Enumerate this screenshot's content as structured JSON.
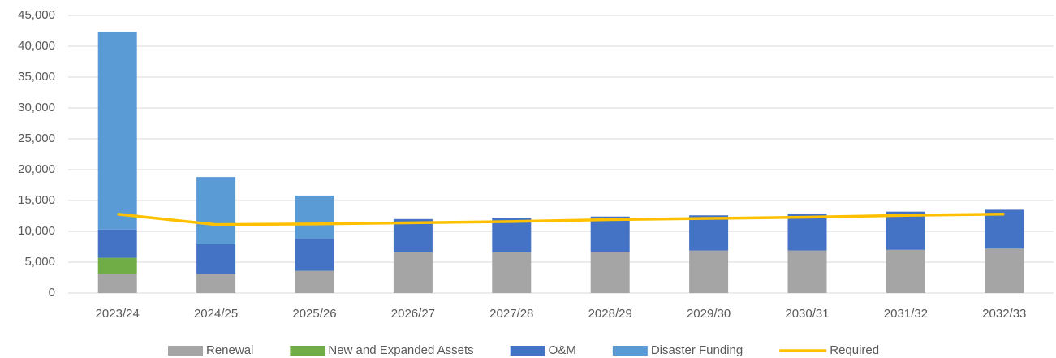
{
  "chart_data": {
    "type": "bar",
    "stacked": true,
    "categories": [
      "2023/24",
      "2024/25",
      "2025/26",
      "2026/27",
      "2027/28",
      "2028/29",
      "2029/30",
      "2030/31",
      "2031/32",
      "2032/33"
    ],
    "series": [
      {
        "name": "Renewal",
        "color": "#a5a5a5",
        "type": "bar",
        "values": [
          3100,
          3100,
          3600,
          6600,
          6600,
          6700,
          6900,
          6900,
          7000,
          7200
        ]
      },
      {
        "name": "New and Expanded Assets",
        "color": "#70ad47",
        "type": "bar",
        "values": [
          2600,
          0,
          0,
          0,
          0,
          0,
          0,
          0,
          0,
          0
        ]
      },
      {
        "name": "O&M",
        "color": "#4472c4",
        "type": "bar",
        "values": [
          4600,
          4800,
          5200,
          5400,
          5600,
          5700,
          5700,
          6000,
          6200,
          6300
        ]
      },
      {
        "name": "Disaster Funding",
        "color": "#5b9bd5",
        "type": "bar",
        "values": [
          32000,
          10900,
          7000,
          0,
          0,
          0,
          0,
          0,
          0,
          0
        ]
      },
      {
        "name": "Required",
        "color": "#ffc000",
        "type": "line",
        "values": [
          12800,
          11100,
          11200,
          11400,
          11600,
          11900,
          12100,
          12300,
          12600,
          12800
        ]
      }
    ],
    "ylim": [
      0,
      45000
    ],
    "yticks": [
      0,
      {
        "value": 5000,
        "label": "5,000"
      },
      {
        "value": 10000,
        "label": "10,000"
      },
      {
        "value": 15000,
        "label": "15,000"
      },
      {
        "value": 20000,
        "label": "20,000"
      },
      {
        "value": 25000,
        "label": "25,000"
      },
      {
        "value": 30000,
        "label": "30,000"
      },
      {
        "value": 35000,
        "label": "35,000"
      },
      {
        "value": 40000,
        "label": "40,000"
      },
      {
        "value": 45000,
        "label": "45,000"
      }
    ],
    "grid": true,
    "legend": "bottom"
  }
}
